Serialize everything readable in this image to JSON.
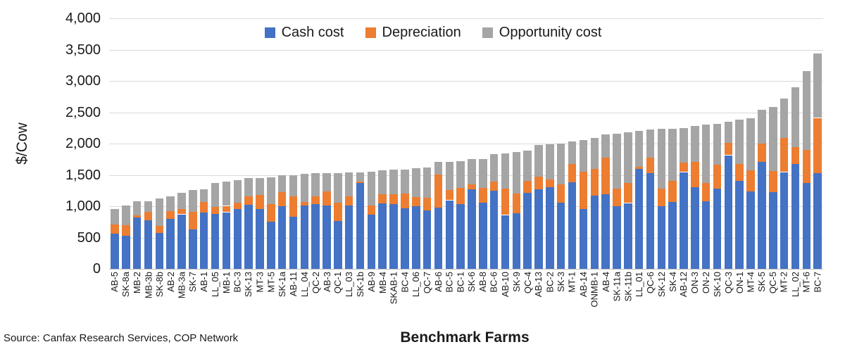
{
  "source_note": "Source: Canfax Research Services, COP Network",
  "chart_data": {
    "type": "bar",
    "stacked": true,
    "title": "",
    "xlabel": "Benchmark Farms",
    "ylabel": "$/Cow",
    "ylim": [
      0,
      4000
    ],
    "ytick_step": 500,
    "ytick_labels": [
      "0",
      "500",
      "1,000",
      "1,500",
      "2,000",
      "2,500",
      "3,000",
      "3,500",
      "4,000"
    ],
    "grid": true,
    "legend_position": "top-center",
    "categories": [
      "AB-5",
      "SK-8a",
      "MB-2",
      "MB-3b",
      "SK-8b",
      "AB-2",
      "MB-3a",
      "SK-7",
      "AB-1",
      "LL_05",
      "MB-1",
      "BC-3",
      "SK-13",
      "MT-3",
      "MT-5",
      "SK-1a",
      "AB-11",
      "LL_04",
      "QC-2",
      "AB-3",
      "QC-1",
      "LL_03",
      "SK-1b",
      "AB-9",
      "MB-4",
      "SKAB-1",
      "BC-4",
      "LL_06",
      "QC-7",
      "AB-6",
      "BC-5",
      "BC-1",
      "SK-6",
      "AB-8",
      "BC-6",
      "AB-10",
      "SK-9",
      "QC-4",
      "AB-13",
      "BC-2",
      "SK-3",
      "MT-1",
      "AB-14",
      "ONMB-1",
      "AB-4",
      "SK-11a",
      "SK-11b",
      "LL_01",
      "QC-6",
      "SK-12",
      "SK-4",
      "AB-12",
      "ON-3",
      "ON-2",
      "SK-10",
      "QC-3",
      "ON-1",
      "MT-4",
      "SK-5",
      "QC-5",
      "MT-2",
      "LL_02",
      "MT-6",
      "BC-7"
    ],
    "series": [
      {
        "name": "Cash cost",
        "color": "#4472C4",
        "values": [
          560,
          530,
          820,
          775,
          570,
          795,
          870,
          625,
          900,
          875,
          905,
          950,
          1020,
          955,
          750,
          1000,
          830,
          1010,
          1030,
          1010,
          760,
          1010,
          1370,
          870,
          1040,
          1030,
          965,
          995,
          930,
          975,
          1095,
          1030,
          1265,
          1060,
          1245,
          860,
          890,
          1220,
          1265,
          1305,
          1055,
          1380,
          955,
          1170,
          1190,
          995,
          1050,
          1600,
          1525,
          995,
          1065,
          1545,
          1300,
          1075,
          1285,
          1815,
          1400,
          1235,
          1705,
          1220,
          1545,
          1675,
          1370,
          1525
        ]
      },
      {
        "name": "Depreciation",
        "color": "#ED7D31",
        "values": [
          145,
          165,
          35,
          135,
          115,
          130,
          80,
          285,
          165,
          110,
          100,
          110,
          140,
          225,
          280,
          220,
          330,
          60,
          130,
          225,
          300,
          145,
          25,
          140,
          150,
          160,
          235,
          155,
          200,
          530,
          160,
          260,
          85,
          230,
          150,
          420,
          315,
          185,
          205,
          120,
          290,
          295,
          600,
          430,
          590,
          290,
          325,
          25,
          255,
          290,
          340,
          150,
          410,
          300,
          375,
          195,
          275,
          335,
          290,
          345,
          540,
          275,
          530,
          885
        ]
      },
      {
        "name": "Opportunity cost",
        "color": "#A5A5A5",
        "values": [
          245,
          320,
          220,
          170,
          435,
          235,
          260,
          345,
          200,
          385,
          390,
          355,
          285,
          275,
          430,
          270,
          340,
          450,
          365,
          290,
          470,
          380,
          150,
          545,
          385,
          395,
          390,
          455,
          490,
          200,
          455,
          430,
          405,
          465,
          435,
          560,
          660,
          485,
          510,
          560,
          650,
          360,
          505,
          485,
          365,
          870,
          800,
          575,
          440,
          950,
          835,
          550,
          575,
          930,
          660,
          340,
          710,
          840,
          550,
          1020,
          630,
          955,
          1260,
          1025
        ]
      }
    ]
  },
  "layout_note": ""
}
